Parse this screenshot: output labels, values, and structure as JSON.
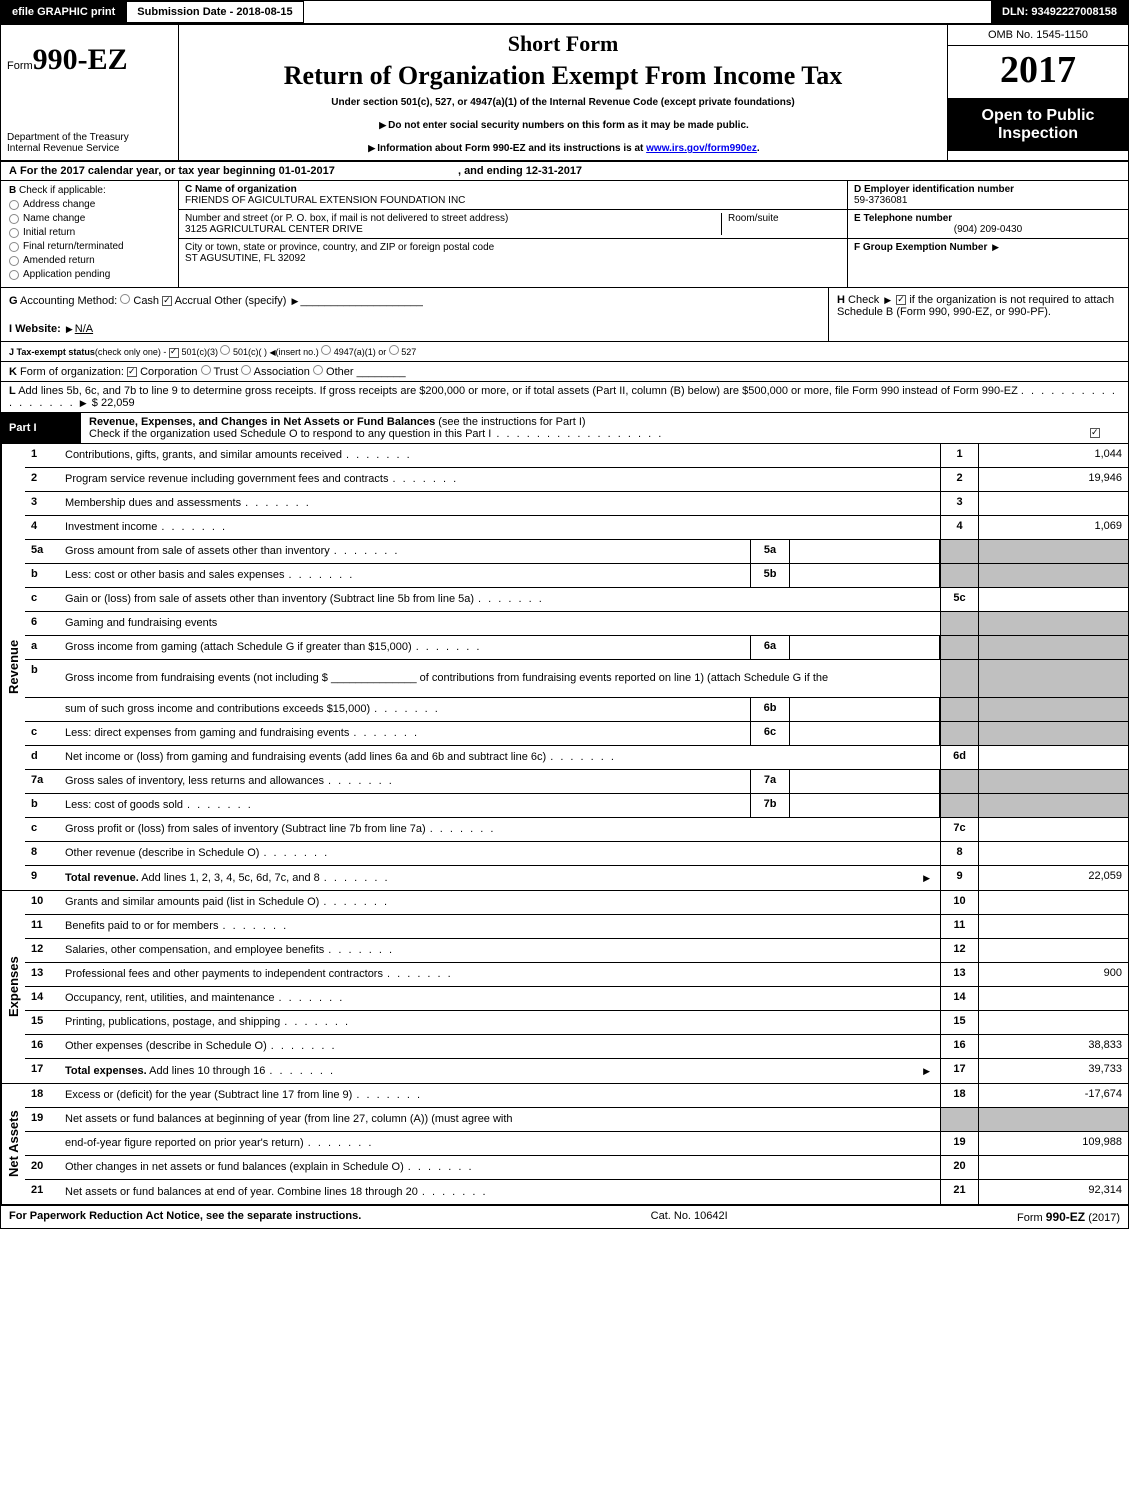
{
  "topbar": {
    "efile": "efile GRAPHIC print",
    "submission": "Submission Date - 2018-08-15",
    "dln": "DLN: 93492227008158"
  },
  "header": {
    "form_prefix": "Form",
    "form_number": "990-EZ",
    "dept1": "Department of the Treasury",
    "dept2": "Internal Revenue Service",
    "short_form": "Short Form",
    "main_title": "Return of Organization Exempt From Income Tax",
    "under": "Under section 501(c), 527, or 4947(a)(1) of the Internal Revenue Code (except private foundations)",
    "ssn_warn": "Do not enter social security numbers on this form as it may be made public.",
    "info_prefix": "Information about Form 990-EZ and its instructions is at ",
    "info_url": "www.irs.gov/form990ez",
    "info_suffix": ".",
    "omb": "OMB No. 1545-1150",
    "year": "2017",
    "open": "Open to Public Inspection"
  },
  "lineA": {
    "a_label": "A",
    "text1": "For the 2017 calendar year, or tax year beginning 01-01-2017",
    "ending": ", and ending 12-31-2017"
  },
  "sectionB": {
    "b_label": "B",
    "check": "Check if applicable:",
    "items": [
      "Address change",
      "Name change",
      "Initial return",
      "Final return/terminated",
      "Amended return",
      "Application pending"
    ]
  },
  "sectionC": {
    "c_label": "C Name of organization",
    "org": "FRIENDS OF AGICULTURAL EXTENSION FOUNDATION INC",
    "street_label": "Number and street (or P. O. box, if mail is not delivered to street address)",
    "room_label": "Room/suite",
    "street": "3125 AGRICULTURAL CENTER DRIVE",
    "city_label": "City or town, state or province, country, and ZIP or foreign postal code",
    "city": "ST AGUSUTINE, FL 32092"
  },
  "sectionDE": {
    "d_label": "D Employer identification number",
    "ein": "59-3736081",
    "e_label": "E Telephone number",
    "phone": "(904) 209-0430",
    "f_label": "F Group Exemption Number"
  },
  "lineG": {
    "g_label": "G",
    "text": "Accounting Method:",
    "cash": "Cash",
    "accrual": "Accrual",
    "other": "Other (specify)"
  },
  "lineH": {
    "h_label": "H",
    "text1": "Check",
    "text2": "if the organization is not required to attach Schedule B (Form 990, 990-EZ, or 990-PF)."
  },
  "lineI": {
    "label": "I Website:",
    "value": "N/A"
  },
  "lineJ": {
    "label": "J Tax-exempt status",
    "note": "(check only one) -",
    "opts": [
      "501(c)(3)",
      "501(c)(  )",
      "(insert no.)",
      "4947(a)(1) or",
      "527"
    ]
  },
  "lineK": {
    "label": "K",
    "text": "Form of organization:",
    "opts": [
      "Corporation",
      "Trust",
      "Association",
      "Other"
    ]
  },
  "lineL": {
    "label": "L",
    "text": "Add lines 5b, 6c, and 7b to line 9 to determine gross receipts. If gross receipts are $200,000 or more, or if total assets (Part II, column (B) below) are $500,000 or more, file Form 990 instead of Form 990-EZ",
    "amount": "$ 22,059"
  },
  "part1": {
    "label": "Part I",
    "title": "Revenue, Expenses, and Changes in Net Assets or Fund Balances",
    "note": "(see the instructions for Part I)",
    "check_text": "Check if the organization used Schedule O to respond to any question in this Part I"
  },
  "sections": {
    "revenue_label": "Revenue",
    "expenses_label": "Expenses",
    "netassets_label": "Net Assets"
  },
  "rows": [
    {
      "n": "1",
      "d": "Contributions, gifts, grants, and similar amounts received",
      "rn": "1",
      "amt": "1,044"
    },
    {
      "n": "2",
      "d": "Program service revenue including government fees and contracts",
      "rn": "2",
      "amt": "19,946"
    },
    {
      "n": "3",
      "d": "Membership dues and assessments",
      "rn": "3",
      "amt": ""
    },
    {
      "n": "4",
      "d": "Investment income",
      "rn": "4",
      "amt": "1,069"
    },
    {
      "n": "5a",
      "d": "Gross amount from sale of assets other than inventory",
      "sub": "5a",
      "grey": true
    },
    {
      "n": "b",
      "d": "Less: cost or other basis and sales expenses",
      "sub": "5b",
      "grey": true
    },
    {
      "n": "c",
      "d": "Gain or (loss) from sale of assets other than inventory (Subtract line 5b from line 5a)",
      "rn": "5c",
      "amt": ""
    },
    {
      "n": "6",
      "d": "Gaming and fundraising events",
      "grey": true,
      "noamt": true
    },
    {
      "n": "a",
      "d": "Gross income from gaming (attach Schedule G if greater than $15,000)",
      "sub": "6a",
      "grey": true
    },
    {
      "n": "b",
      "d": "Gross income from fundraising events (not including $ ______________ of contributions from fundraising events reported on line 1) (attach Schedule G if the",
      "grey": true,
      "noamt": true,
      "tall": true
    },
    {
      "n": "",
      "d": "sum of such gross income and contributions exceeds $15,000)",
      "sub": "6b",
      "grey": true
    },
    {
      "n": "c",
      "d": "Less: direct expenses from gaming and fundraising events",
      "sub": "6c",
      "grey": true
    },
    {
      "n": "d",
      "d": "Net income or (loss) from gaming and fundraising events (add lines 6a and 6b and subtract line 6c)",
      "rn": "6d",
      "amt": ""
    },
    {
      "n": "7a",
      "d": "Gross sales of inventory, less returns and allowances",
      "sub": "7a",
      "grey": true
    },
    {
      "n": "b",
      "d": "Less: cost of goods sold",
      "sub": "7b",
      "grey": true
    },
    {
      "n": "c",
      "d": "Gross profit or (loss) from sales of inventory (Subtract line 7b from line 7a)",
      "rn": "7c",
      "amt": ""
    },
    {
      "n": "8",
      "d": "Other revenue (describe in Schedule O)",
      "rn": "8",
      "amt": ""
    },
    {
      "n": "9",
      "d": "Total revenue. Add lines 1, 2, 3, 4, 5c, 6d, 7c, and 8",
      "rn": "9",
      "amt": "22,059",
      "bold": true,
      "arrow": true
    }
  ],
  "exp_rows": [
    {
      "n": "10",
      "d": "Grants and similar amounts paid (list in Schedule O)",
      "rn": "10",
      "amt": ""
    },
    {
      "n": "11",
      "d": "Benefits paid to or for members",
      "rn": "11",
      "amt": ""
    },
    {
      "n": "12",
      "d": "Salaries, other compensation, and employee benefits",
      "rn": "12",
      "amt": ""
    },
    {
      "n": "13",
      "d": "Professional fees and other payments to independent contractors",
      "rn": "13",
      "amt": "900"
    },
    {
      "n": "14",
      "d": "Occupancy, rent, utilities, and maintenance",
      "rn": "14",
      "amt": ""
    },
    {
      "n": "15",
      "d": "Printing, publications, postage, and shipping",
      "rn": "15",
      "amt": ""
    },
    {
      "n": "16",
      "d": "Other expenses (describe in Schedule O)",
      "rn": "16",
      "amt": "38,833"
    },
    {
      "n": "17",
      "d": "Total expenses. Add lines 10 through 16",
      "rn": "17",
      "amt": "39,733",
      "bold": true,
      "arrow": true
    }
  ],
  "na_rows": [
    {
      "n": "18",
      "d": "Excess or (deficit) for the year (Subtract line 17 from line 9)",
      "rn": "18",
      "amt": "-17,674"
    },
    {
      "n": "19",
      "d": "Net assets or fund balances at beginning of year (from line 27, column (A)) (must agree with",
      "grey": true,
      "noamt": true
    },
    {
      "n": "",
      "d": "end-of-year figure reported on prior year's return)",
      "rn": "19",
      "amt": "109,988"
    },
    {
      "n": "20",
      "d": "Other changes in net assets or fund balances (explain in Schedule O)",
      "rn": "20",
      "amt": ""
    },
    {
      "n": "21",
      "d": "Net assets or fund balances at end of year. Combine lines 18 through 20",
      "rn": "21",
      "amt": "92,314"
    }
  ],
  "footer": {
    "left": "For Paperwork Reduction Act Notice, see the separate instructions.",
    "center": "Cat. No. 10642I",
    "right": "Form 990-EZ (2017)"
  }
}
